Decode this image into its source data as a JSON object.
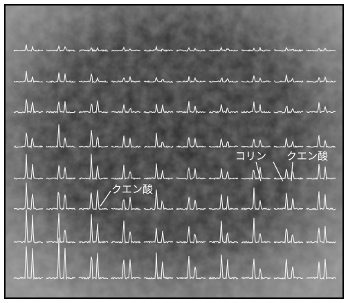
{
  "annotations": [
    {
      "label": "コリン"
    },
    {
      "label": "クエン酸"
    },
    {
      "label": "クエン酸"
    }
  ]
}
